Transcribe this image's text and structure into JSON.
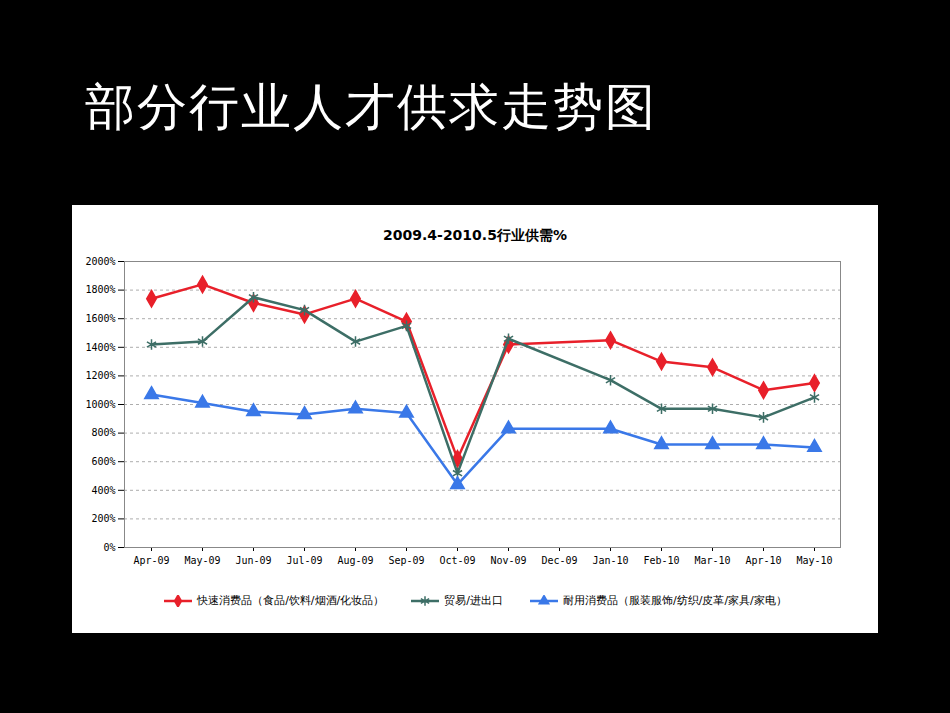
{
  "chart_data": {
    "type": "line",
    "page_title": "部分行业人才供求走势图",
    "title": "2009.4-2010.5行业供需%",
    "categories": [
      "Apr-09",
      "May-09",
      "Jun-09",
      "Jul-09",
      "Aug-09",
      "Sep-09",
      "Oct-09",
      "Nov-09",
      "Dec-09",
      "Jan-10",
      "Feb-10",
      "Mar-10",
      "Apr-10",
      "May-10"
    ],
    "series": [
      {
        "name": "快速消费品（食品/饮料/烟酒/化妆品）",
        "color": "#e8202a",
        "marker": "diamond",
        "values": [
          1740,
          1840,
          1710,
          1630,
          1740,
          1580,
          620,
          1420,
          null,
          1450,
          1300,
          1260,
          1100,
          1150
        ]
      },
      {
        "name": "贸易/进出口",
        "color": "#3d6e66",
        "marker": "asterisk",
        "values": [
          1420,
          1440,
          1750,
          1660,
          1440,
          1550,
          520,
          1460,
          null,
          1170,
          970,
          970,
          910,
          1050
        ]
      },
      {
        "name": "耐用消费品（服装服饰/纺织/皮革/家具/家电）",
        "color": "#3a78e8",
        "marker": "triangle",
        "values": [
          1070,
          1010,
          950,
          930,
          970,
          940,
          440,
          830,
          null,
          830,
          720,
          720,
          720,
          700
        ]
      }
    ],
    "ylim": [
      0,
      2000
    ],
    "yticks": [
      {
        "value": 0,
        "label": "0%"
      },
      {
        "value": 200,
        "label": "200%"
      },
      {
        "value": 400,
        "label": "400%"
      },
      {
        "value": 600,
        "label": "600%"
      },
      {
        "value": 800,
        "label": "800%"
      },
      {
        "value": 1000,
        "label": "1000%"
      },
      {
        "value": 1200,
        "label": "1200%"
      },
      {
        "value": 1400,
        "label": "1400%"
      },
      {
        "value": 1600,
        "label": "1600%"
      },
      {
        "value": 1800,
        "label": "1800%"
      },
      {
        "value": 2000,
        "label": "2000%"
      }
    ],
    "grid": true,
    "legend": "bottom"
  }
}
